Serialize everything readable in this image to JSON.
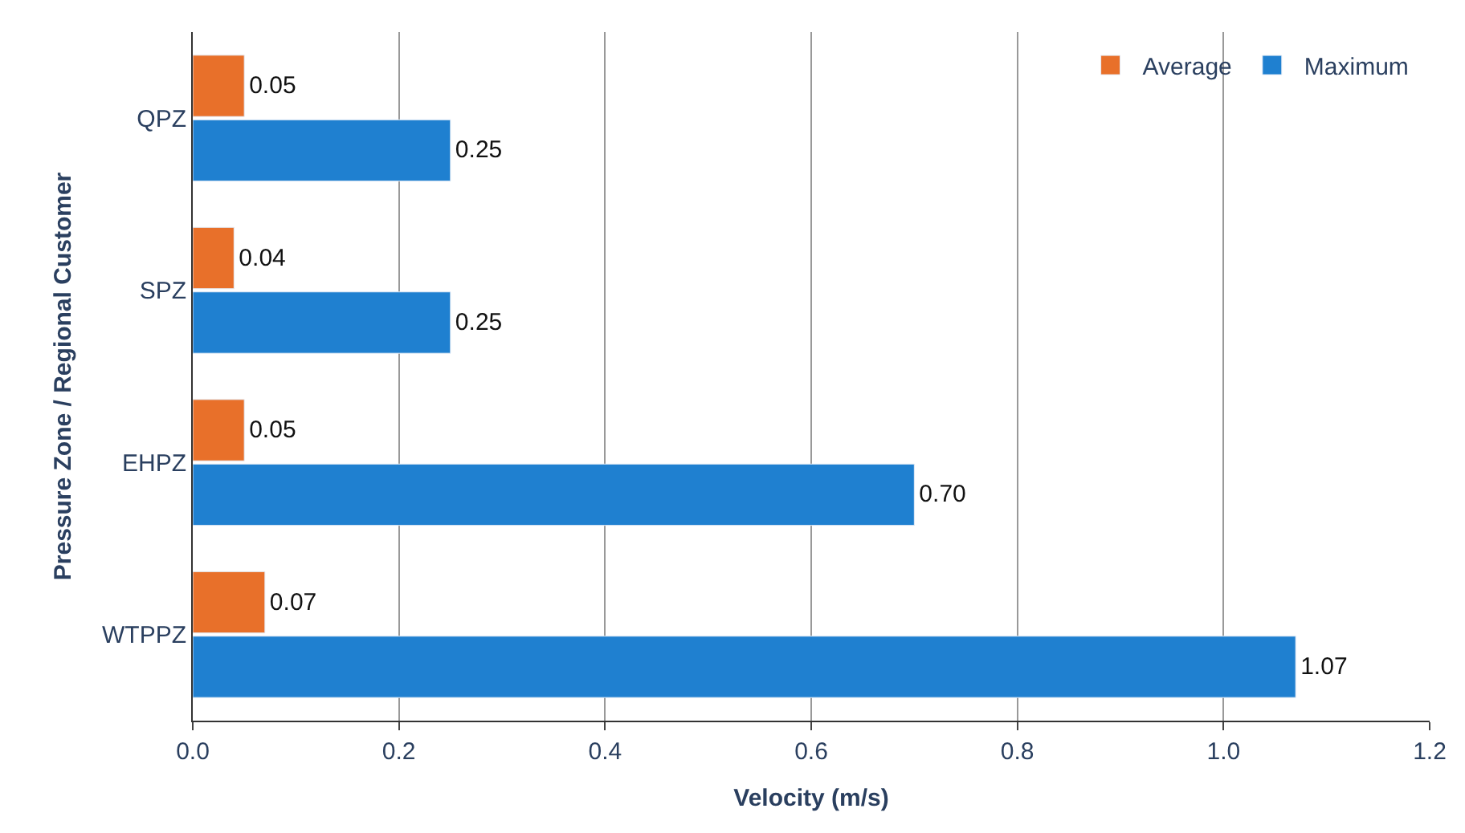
{
  "chart_data": {
    "type": "bar",
    "orientation": "horizontal",
    "xlabel": "Velocity (m/s)",
    "ylabel": "Pressure Zone / Regional Customer",
    "categories": [
      "QPZ",
      "SPZ",
      "EHPZ",
      "WTPPZ"
    ],
    "series": [
      {
        "name": "Average",
        "color": "#e8702a",
        "values": [
          0.05,
          0.04,
          0.05,
          0.07
        ],
        "value_labels": [
          "0.05",
          "0.04",
          "0.05",
          "0.07"
        ]
      },
      {
        "name": "Maximum",
        "color": "#1f80d0",
        "values": [
          0.25,
          0.25,
          0.7,
          1.07
        ],
        "value_labels": [
          "0.25",
          "0.25",
          "0.70",
          "1.07"
        ]
      }
    ],
    "xlim": [
      0,
      1.2
    ],
    "xticks": [
      {
        "value": 0,
        "label": "0.0"
      },
      {
        "value": 0.2,
        "label": "0.2"
      },
      {
        "value": 0.4,
        "label": "0.4"
      },
      {
        "value": 0.6,
        "label": "0.6"
      },
      {
        "value": 0.8,
        "label": "0.8"
      },
      {
        "value": 1,
        "label": "1.0"
      },
      {
        "value": 1.2,
        "label": "1.2"
      }
    ],
    "grid": "x",
    "legend": "top right"
  }
}
